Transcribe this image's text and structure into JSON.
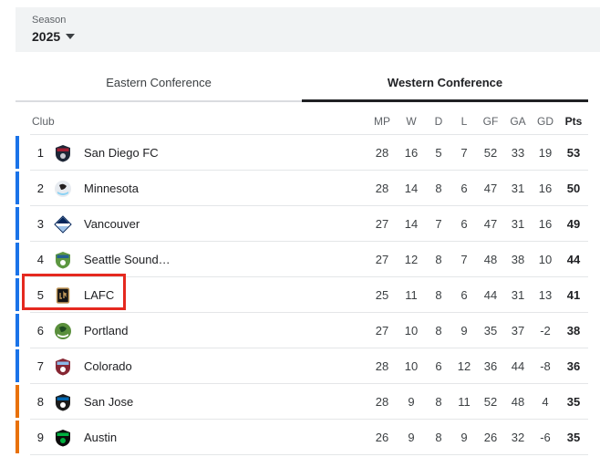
{
  "season": {
    "label": "Season",
    "value": "2025"
  },
  "tabs": [
    {
      "label": "Eastern Conference",
      "active": false
    },
    {
      "label": "Western Conference",
      "active": true
    }
  ],
  "table": {
    "columns": [
      "Club",
      "MP",
      "W",
      "D",
      "L",
      "GF",
      "GA",
      "GD",
      "Pts"
    ],
    "rows": [
      {
        "rank": 1,
        "club": "San Diego FC",
        "icon": "san-diego-fc-crest-icon",
        "zone": "playoff",
        "mp": 28,
        "w": 16,
        "d": 5,
        "l": 7,
        "gf": 52,
        "ga": 33,
        "gd": 19,
        "pts": 53,
        "crest": {
          "shape": "shield",
          "primary": "#1d2636",
          "secondary": "#a31e33",
          "accent": "#c8c9d1"
        }
      },
      {
        "rank": 2,
        "club": "Minnesota",
        "icon": "minnesota-crest-icon",
        "zone": "playoff",
        "mp": 28,
        "w": 14,
        "d": 8,
        "l": 6,
        "gf": 47,
        "ga": 31,
        "gd": 16,
        "pts": 50,
        "crest": {
          "shape": "circle",
          "primary": "#e7ebf0",
          "secondary": "#231f20",
          "accent": "#8cd2f4"
        }
      },
      {
        "rank": 3,
        "club": "Vancouver",
        "icon": "vancouver-crest-icon",
        "zone": "playoff",
        "mp": 27,
        "w": 14,
        "d": 7,
        "l": 6,
        "gf": 47,
        "ga": 31,
        "gd": 16,
        "pts": 49,
        "crest": {
          "shape": "diamond",
          "primary": "#ffffff",
          "secondary": "#04265c",
          "accent": "#9cc2ea"
        }
      },
      {
        "rank": 4,
        "club": "Seattle Sound…",
        "icon": "seattle-sounders-crest-icon",
        "zone": "playoff",
        "mp": 27,
        "w": 12,
        "d": 8,
        "l": 7,
        "gf": 48,
        "ga": 38,
        "gd": 10,
        "pts": 44,
        "crest": {
          "shape": "shield",
          "primary": "#5d9741",
          "secondary": "#236192",
          "accent": "#ffffff"
        }
      },
      {
        "rank": 5,
        "club": "LAFC",
        "icon": "lafc-crest-icon",
        "zone": "playoff",
        "mp": 25,
        "w": 11,
        "d": 8,
        "l": 6,
        "gf": 44,
        "ga": 31,
        "gd": 13,
        "pts": 41,
        "crest": {
          "shape": "square",
          "primary": "#141414",
          "secondary": "#c3995b",
          "accent": "#c3995b"
        }
      },
      {
        "rank": 6,
        "club": "Portland",
        "icon": "portland-crest-icon",
        "zone": "playoff",
        "mp": 27,
        "w": 10,
        "d": 8,
        "l": 9,
        "gf": 35,
        "ga": 37,
        "gd": -2,
        "pts": 38,
        "crest": {
          "shape": "circle",
          "primary": "#5a8f3c",
          "secondary": "#1d4a21",
          "accent": "#ffffff"
        }
      },
      {
        "rank": 7,
        "club": "Colorado",
        "icon": "colorado-crest-icon",
        "zone": "playoff",
        "mp": 28,
        "w": 10,
        "d": 6,
        "l": 12,
        "gf": 36,
        "ga": 44,
        "gd": -8,
        "pts": 36,
        "crest": {
          "shape": "shield",
          "primary": "#862633",
          "secondary": "#8bb8e8",
          "accent": "#ffffff"
        }
      },
      {
        "rank": 8,
        "club": "San Jose",
        "icon": "san-jose-crest-icon",
        "zone": "playin",
        "mp": 28,
        "w": 9,
        "d": 8,
        "l": 11,
        "gf": 52,
        "ga": 48,
        "gd": 4,
        "pts": 35,
        "crest": {
          "shape": "shield",
          "primary": "#1b1b1b",
          "secondary": "#0067b1",
          "accent": "#ffffff"
        }
      },
      {
        "rank": 9,
        "club": "Austin",
        "icon": "austin-crest-icon",
        "zone": "playin",
        "mp": 26,
        "w": 9,
        "d": 8,
        "l": 9,
        "gf": 26,
        "ga": 32,
        "gd": -6,
        "pts": 35,
        "crest": {
          "shape": "shield",
          "primary": "#0c0c0c",
          "secondary": "#00b140",
          "accent": "#00b140"
        }
      }
    ]
  },
  "annotation": {
    "type": "red-box",
    "target_row": "LAFC",
    "color": "#e5291f"
  },
  "colors": {
    "playoff_bar": "#1a73e8",
    "playin_bar": "#e8710a",
    "panel_bg": "#f1f3f4",
    "active_tab_underline": "#202124"
  }
}
